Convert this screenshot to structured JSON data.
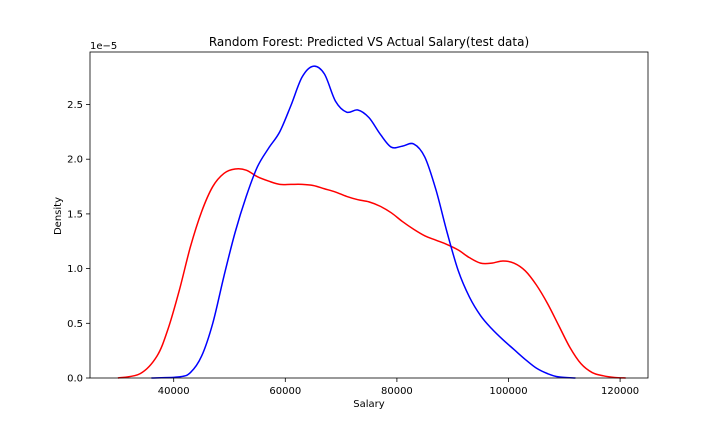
{
  "chart_data": {
    "type": "line",
    "title": "Random Forest:  Predicted VS Actual Salary(test data)",
    "xlabel": "Salary",
    "ylabel": "Density",
    "y_offset_label": "1e−5",
    "xlim": [
      25000,
      125000
    ],
    "ylim": [
      0,
      2.98
    ],
    "y_scale_note": "values in units of 1e-5",
    "x_ticks": [
      40000,
      60000,
      80000,
      100000,
      120000
    ],
    "x_tick_labels": [
      "40000",
      "60000",
      "80000",
      "100000",
      "120000"
    ],
    "y_ticks": [
      0.0,
      0.5,
      1.0,
      1.5,
      2.0,
      2.5
    ],
    "y_tick_labels": [
      "0.0",
      "0.5",
      "1.0",
      "1.5",
      "2.0",
      "2.5"
    ],
    "grid": false,
    "series": [
      {
        "color": "#ff0000",
        "x": [
          30000,
          34000,
          37000,
          39000,
          41000,
          43000,
          45000,
          47000,
          49000,
          51000,
          53000,
          55000,
          57000,
          59000,
          61000,
          63000,
          65000,
          67000,
          69000,
          71000,
          73000,
          75000,
          77000,
          79000,
          81000,
          83000,
          85000,
          87000,
          89000,
          91000,
          93000,
          95000,
          97000,
          99000,
          101000,
          103000,
          105000,
          107000,
          109000,
          111000,
          113000,
          115000,
          117000,
          119000,
          121000
        ],
        "y": [
          0.0,
          0.04,
          0.2,
          0.45,
          0.8,
          1.2,
          1.52,
          1.75,
          1.87,
          1.91,
          1.9,
          1.84,
          1.8,
          1.77,
          1.77,
          1.77,
          1.76,
          1.73,
          1.7,
          1.66,
          1.63,
          1.61,
          1.57,
          1.51,
          1.43,
          1.36,
          1.3,
          1.26,
          1.22,
          1.17,
          1.1,
          1.05,
          1.05,
          1.07,
          1.05,
          0.98,
          0.85,
          0.68,
          0.48,
          0.28,
          0.13,
          0.05,
          0.02,
          0.005,
          0.0
        ]
      },
      {
        "color": "#0000ff",
        "x": [
          36000,
          41000,
          43000,
          45000,
          47000,
          49000,
          51000,
          53000,
          55000,
          57000,
          59000,
          61000,
          63000,
          65000,
          67000,
          69000,
          71000,
          73000,
          75000,
          77000,
          79000,
          81000,
          83000,
          85000,
          87000,
          89000,
          91000,
          93000,
          95000,
          97000,
          99000,
          101000,
          103000,
          105000,
          107000,
          109000,
          112000
        ],
        "y": [
          0.0,
          0.01,
          0.05,
          0.2,
          0.5,
          0.93,
          1.33,
          1.66,
          1.93,
          2.1,
          2.25,
          2.49,
          2.75,
          2.85,
          2.78,
          2.53,
          2.43,
          2.45,
          2.38,
          2.23,
          2.11,
          2.12,
          2.14,
          2.02,
          1.72,
          1.33,
          0.98,
          0.74,
          0.57,
          0.45,
          0.35,
          0.26,
          0.17,
          0.09,
          0.04,
          0.01,
          0.0
        ]
      }
    ]
  }
}
